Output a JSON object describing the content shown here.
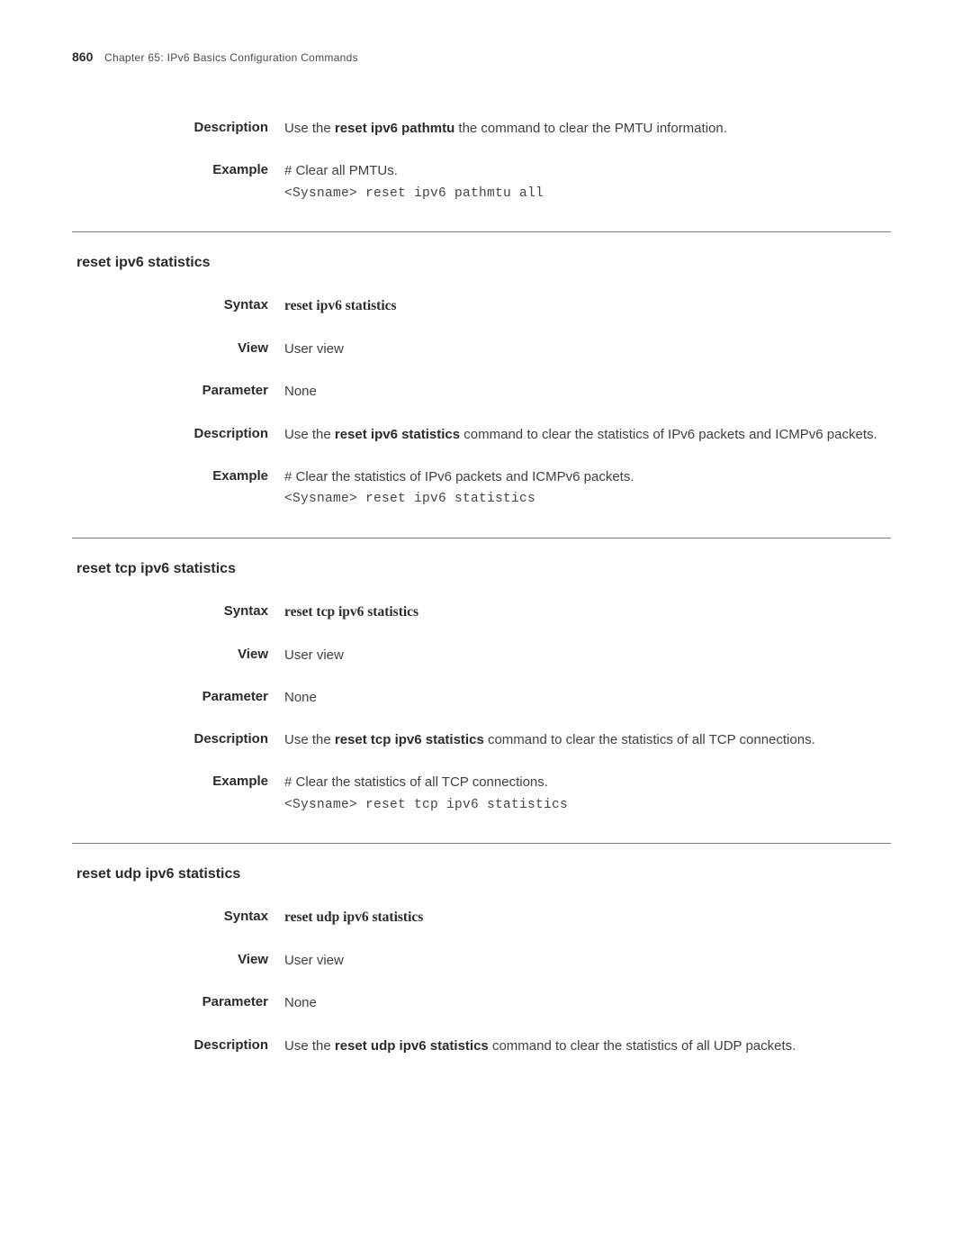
{
  "header": {
    "page_number": "860",
    "chapter_label": "Chapter 65: IPv6 Basics Configuration Commands"
  },
  "labels": {
    "description": "Description",
    "example": "Example",
    "syntax": "Syntax",
    "view": "View",
    "parameter": "Parameter"
  },
  "intro": {
    "desc_prefix": "Use the ",
    "desc_bold": "reset ipv6 pathmtu",
    "desc_suffix": " the command to clear the PMTU information.",
    "example_text": "# Clear all PMTUs.",
    "example_cmd": "<Sysname> reset ipv6 pathmtu all"
  },
  "sections": [
    {
      "title": "reset ipv6 statistics",
      "syntax": "reset ipv6 statistics",
      "view": "User view",
      "parameter": "None",
      "desc_prefix": "Use the ",
      "desc_bold": "reset ipv6 statistics",
      "desc_suffix": " command to clear the statistics of IPv6 packets and ICMPv6 packets.",
      "example_text": "# Clear the statistics of IPv6 packets and ICMPv6 packets.",
      "example_cmd": "<Sysname> reset ipv6 statistics"
    },
    {
      "title": "reset tcp ipv6 statistics",
      "syntax": "reset tcp ipv6 statistics",
      "view": "User view",
      "parameter": "None",
      "desc_prefix": "Use the ",
      "desc_bold": "reset tcp ipv6 statistics",
      "desc_suffix": " command to clear the statistics of all TCP connections.",
      "example_text": "# Clear the statistics of all TCP connections.",
      "example_cmd": "<Sysname> reset tcp ipv6 statistics"
    },
    {
      "title": "reset udp ipv6 statistics",
      "syntax": "reset udp ipv6 statistics",
      "view": "User view",
      "parameter": "None",
      "desc_prefix": "Use the ",
      "desc_bold": "reset udp ipv6 statistics",
      "desc_suffix": " command to clear the statistics of all UDP packets.",
      "example_text": "",
      "example_cmd": ""
    }
  ]
}
